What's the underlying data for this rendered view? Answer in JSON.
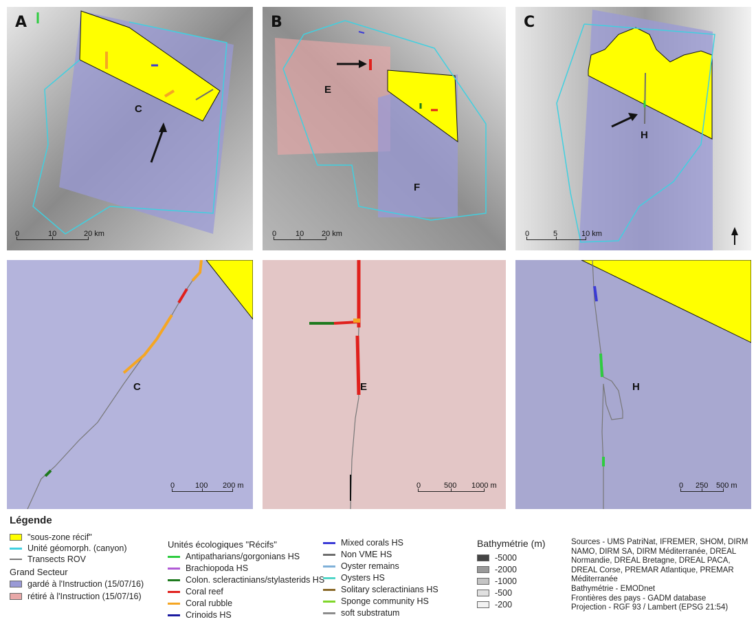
{
  "panels": {
    "A": {
      "label": "A",
      "sublabel": "C",
      "scale": [
        "0",
        "10",
        "20  km"
      ]
    },
    "B": {
      "label": "B",
      "sublabel_e": "E",
      "sublabel_f": "F",
      "scale": [
        "0",
        "10",
        "20  km"
      ]
    },
    "C": {
      "label": "C",
      "sublabel": "H",
      "scale": [
        "0",
        "5",
        "10  km"
      ]
    },
    "D": {
      "sublabel": "C",
      "scale": [
        "0",
        "100",
        "200 m"
      ]
    },
    "E": {
      "sublabel": "E",
      "scale": [
        "0",
        "500",
        "1000 m"
      ]
    },
    "F": {
      "sublabel": "H",
      "scale": [
        "0",
        "250",
        "500 m"
      ]
    }
  },
  "legend": {
    "title": "Légende",
    "zone_recif": "\"sous-zone récif\"",
    "unite_geomorph": "Unité géomorph. (canyon)",
    "transects": "Transects ROV",
    "grand_secteur": "Grand Secteur",
    "garde": "gardé à l'Instruction (15/07/16)",
    "retire": "rétiré à l'Instruction (15/07/16)",
    "unites_title": "Unités écologiques \"Récifs\"",
    "unites": [
      {
        "label": "Antipatharians/gorgonians HS",
        "color": "#2ecc40"
      },
      {
        "label": "Brachiopoda HS",
        "color": "#b15bd6"
      },
      {
        "label": "Colon. scleractinians/stylasterids HS",
        "color": "#1e7a1e"
      },
      {
        "label": "Coral reef",
        "color": "#e0201c"
      },
      {
        "label": "Coral rubble",
        "color": "#f5a623"
      },
      {
        "label": "Crinoids HS",
        "color": "#1a1aa0"
      }
    ],
    "unites2": [
      {
        "label": "Mixed corals HS",
        "color": "#3b3bd6"
      },
      {
        "label": "Non VME HS",
        "color": "#6e6e6e"
      },
      {
        "label": "Oyster remains",
        "color": "#7fb0d8"
      },
      {
        "label": "Oysters HS",
        "color": "#52d6c8"
      },
      {
        "label": "Solitary scleractinians HS",
        "color": "#8a6a2a"
      },
      {
        "label": "Sponge community HS",
        "color": "#7fd62a"
      },
      {
        "label": "soft substratum",
        "color": "#8c8c8c"
      }
    ],
    "bathy_title": "Bathymétrie (m)",
    "bathy": [
      {
        "label": "-5000",
        "color": "#444444"
      },
      {
        "label": "-2000",
        "color": "#9a9a9a"
      },
      {
        "label": "-1000",
        "color": "#c4c4c4"
      },
      {
        "label": "-500",
        "color": "#e0e0e0"
      },
      {
        "label": "-200",
        "color": "#f2f2f2"
      }
    ],
    "sources": "Sources - UMS PatriNat, IFREMER, SHOM, DIRM NAMO, DIRM SA, DIRM Méditerranée, DREAL Normandie, DREAL Bretagne, DREAL PACA, DREAL Corse, PREMAR Atlantique, PREMAR Méditerranée\nBathymétrie - EMODnet\nFrontières des pays - GADM database\nProjection - RGF 93 / Lambert (EPSG 21:54)"
  },
  "colors": {
    "recif": "#ffff00",
    "garde": "#9a9ad6",
    "retire": "#e8a8a8",
    "canyon": "#40d0e0"
  }
}
